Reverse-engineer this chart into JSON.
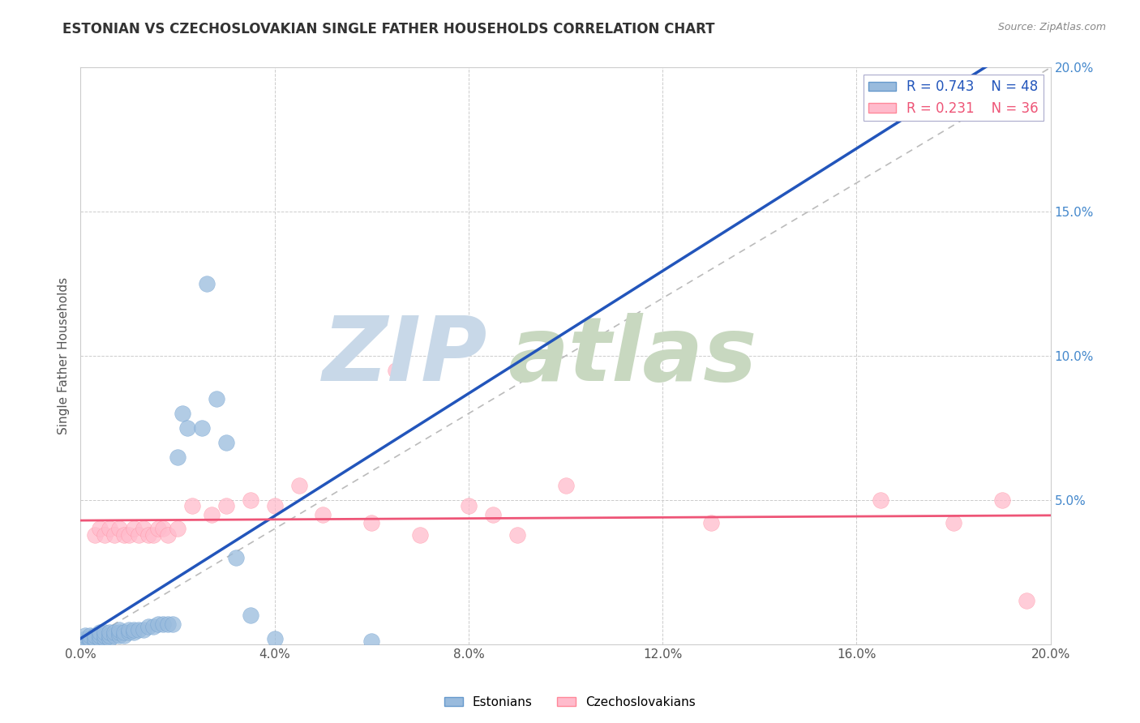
{
  "title": "ESTONIAN VS CZECHOSLOVAKIAN SINGLE FATHER HOUSEHOLDS CORRELATION CHART",
  "source": "Source: ZipAtlas.com",
  "ylabel": "Single Father Households",
  "xlim": [
    0.0,
    0.2
  ],
  "ylim": [
    0.0,
    0.2
  ],
  "estonian_color": "#99BBDD",
  "estonian_edge_color": "#6699CC",
  "czechoslovakian_color": "#FFBBCC",
  "czechoslovakian_edge_color": "#FF8899",
  "estonian_R": 0.743,
  "estonian_N": 48,
  "czechoslovakian_R": 0.231,
  "czechoslovakian_N": 36,
  "diagonal_color": "#BBBBBB",
  "estonian_line_color": "#2255BB",
  "czechoslovakian_line_color": "#EE5577",
  "right_tick_color": "#4488CC",
  "watermark_zip_color": "#C8D8E8",
  "watermark_atlas_color": "#C8D8C0",
  "est_x": [
    0.001,
    0.001,
    0.001,
    0.002,
    0.002,
    0.002,
    0.003,
    0.003,
    0.003,
    0.004,
    0.004,
    0.004,
    0.005,
    0.005,
    0.005,
    0.006,
    0.006,
    0.006,
    0.007,
    0.007,
    0.008,
    0.008,
    0.008,
    0.009,
    0.009,
    0.01,
    0.01,
    0.011,
    0.011,
    0.012,
    0.013,
    0.014,
    0.015,
    0.016,
    0.017,
    0.018,
    0.019,
    0.02,
    0.021,
    0.022,
    0.025,
    0.026,
    0.028,
    0.03,
    0.032,
    0.035,
    0.04,
    0.06
  ],
  "est_y": [
    0.001,
    0.002,
    0.003,
    0.001,
    0.002,
    0.003,
    0.001,
    0.002,
    0.003,
    0.002,
    0.003,
    0.004,
    0.002,
    0.003,
    0.004,
    0.002,
    0.003,
    0.004,
    0.003,
    0.004,
    0.003,
    0.004,
    0.005,
    0.003,
    0.004,
    0.004,
    0.005,
    0.004,
    0.005,
    0.005,
    0.005,
    0.006,
    0.006,
    0.007,
    0.007,
    0.007,
    0.007,
    0.065,
    0.08,
    0.075,
    0.075,
    0.125,
    0.085,
    0.07,
    0.03,
    0.01,
    0.002,
    0.001
  ],
  "cze_x": [
    0.003,
    0.004,
    0.005,
    0.006,
    0.007,
    0.008,
    0.009,
    0.01,
    0.011,
    0.012,
    0.013,
    0.014,
    0.015,
    0.016,
    0.017,
    0.018,
    0.02,
    0.023,
    0.027,
    0.03,
    0.035,
    0.04,
    0.045,
    0.05,
    0.06,
    0.065,
    0.07,
    0.08,
    0.085,
    0.09,
    0.1,
    0.13,
    0.165,
    0.18,
    0.19,
    0.195
  ],
  "cze_y": [
    0.038,
    0.04,
    0.038,
    0.04,
    0.038,
    0.04,
    0.038,
    0.038,
    0.04,
    0.038,
    0.04,
    0.038,
    0.038,
    0.04,
    0.04,
    0.038,
    0.04,
    0.048,
    0.045,
    0.048,
    0.05,
    0.048,
    0.055,
    0.045,
    0.042,
    0.095,
    0.038,
    0.048,
    0.045,
    0.038,
    0.055,
    0.042,
    0.05,
    0.042,
    0.05,
    0.015
  ]
}
